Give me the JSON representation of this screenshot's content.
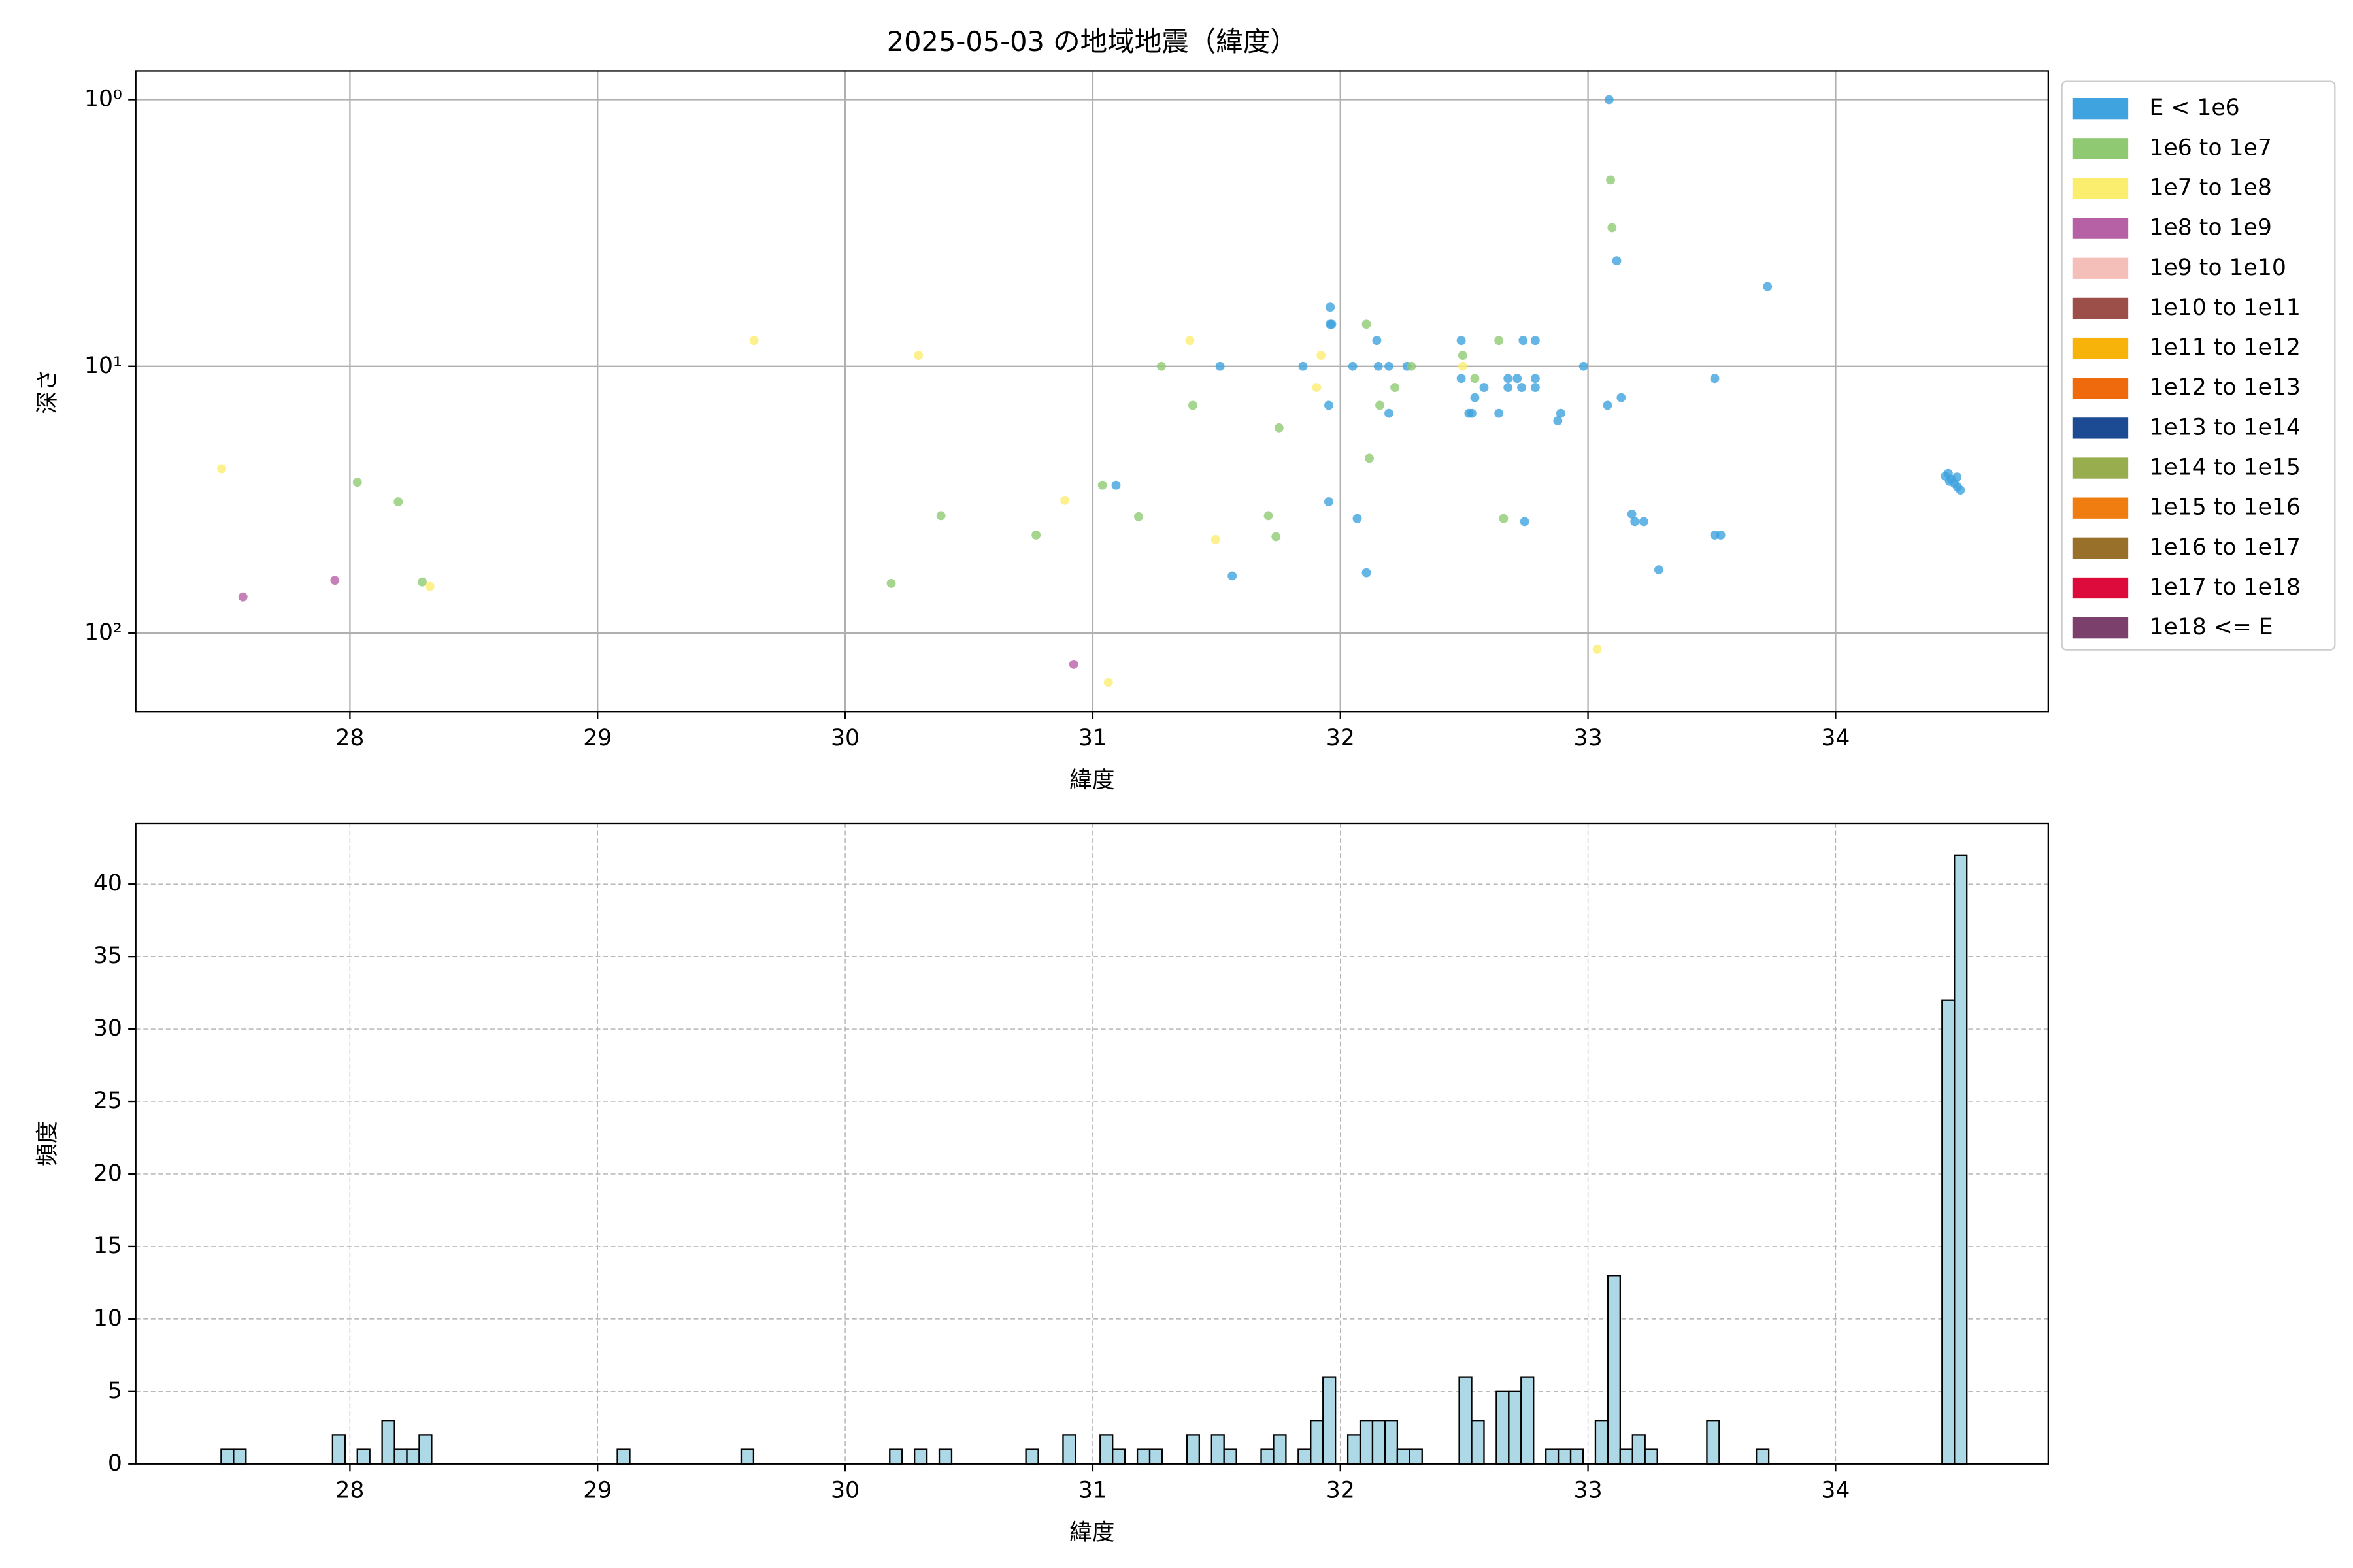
{
  "chart_data": [
    {
      "type": "scatter",
      "title": "2025-05-03 の地域地震（緯度）",
      "x_label": "緯度",
      "y_label": "深さ",
      "xlim": [
        27.135,
        34.859
      ],
      "xticks": [
        28,
        29,
        30,
        31,
        32,
        33,
        34
      ],
      "ylim": [
        197,
        0.78
      ],
      "log_scale": true,
      "yticks": [
        {
          "value": 1,
          "label": "10⁰"
        },
        {
          "value": 10,
          "label": "10¹"
        },
        {
          "value": 100,
          "label": "10²"
        }
      ],
      "grid": true,
      "legend": "outside-right",
      "series": [
        {
          "name": "E < 1e6",
          "color": "#3fa3df",
          "x": [
            33.085,
            33.116,
            33.725,
            31.959,
            31.959,
            31.965,
            32.147,
            32.488,
            32.738,
            32.787,
            31.514,
            31.849,
            32.05,
            32.153,
            32.196,
            32.269,
            32.982,
            32.488,
            33.512,
            32.677,
            32.714,
            32.787,
            32.677,
            32.732,
            32.787,
            32.58,
            32.543,
            33.134,
            31.953,
            32.196,
            32.519,
            32.531,
            32.64,
            32.89,
            32.878,
            33.079,
            31.094,
            31.953,
            33.177,
            33.189,
            33.225,
            32.068,
            32.744,
            33.512,
            33.536,
            33.286,
            31.563,
            32.105,
            34.443,
            34.455,
            34.468,
            34.48,
            34.492,
            34.504,
            34.46,
            34.49
          ],
          "y": [
            1.0,
            4.02,
            5.02,
            6.0,
            6.95,
            6.95,
            8.0,
            8.0,
            8.0,
            8.0,
            10,
            10,
            10,
            10,
            10,
            10,
            10,
            11.1,
            11.1,
            11.1,
            11.1,
            11.1,
            12.0,
            12.0,
            12.0,
            12.0,
            13.1,
            13.1,
            14.0,
            15.0,
            15.0,
            15.0,
            15.0,
            15.0,
            16.0,
            14.0,
            27.9,
            32.2,
            35.8,
            38.2,
            38.2,
            37.2,
            38.2,
            42.9,
            42.9,
            57.9,
            61.0,
            59.4,
            25.8,
            25.2,
            26.5,
            27.5,
            28.3,
            29.1,
            27.0,
            26.0
          ]
        },
        {
          "name": "1e6 to 1e7",
          "color": "#8fca72",
          "x": [
            33.091,
            33.097,
            32.105,
            32.64,
            32.494,
            31.277,
            32.287,
            32.543,
            32.22,
            31.404,
            32.159,
            31.752,
            32.117,
            28.03,
            28.195,
            31.039,
            30.387,
            31.185,
            31.709,
            32.659,
            30.771,
            31.74,
            28.292,
            30.186
          ],
          "y": [
            2.0,
            3.02,
            6.95,
            8.0,
            9.1,
            10,
            10,
            11.1,
            12.0,
            14.0,
            14.0,
            17.0,
            22.1,
            27.2,
            32.2,
            27.9,
            36.3,
            36.6,
            36.3,
            37.2,
            42.9,
            43.5,
            64.3,
            65.1
          ]
        },
        {
          "name": "1e7 to 1e8",
          "color": "#fbee6f",
          "x": [
            31.392,
            29.632,
            30.296,
            31.922,
            32.494,
            31.904,
            27.482,
            30.887,
            31.496,
            28.323,
            33.037,
            31.063
          ],
          "y": [
            8.0,
            8.0,
            9.1,
            9.1,
            10,
            12.0,
            24.2,
            31.8,
            44.6,
            66.8,
            115,
            153
          ]
        },
        {
          "name": "1e8 to 1e9",
          "color": "#b661a6",
          "x": [
            27.568,
            27.939,
            30.923
          ],
          "y": [
            73.2,
            63.4,
            131
          ]
        },
        {
          "name": "1e9 to 1e10",
          "color": "#f4bfb9",
          "x": [],
          "y": []
        },
        {
          "name": "1e10 to 1e11",
          "color": "#9b4f48",
          "x": [],
          "y": []
        },
        {
          "name": "1e11 to 1e12",
          "color": "#f7b30a",
          "x": [],
          "y": []
        },
        {
          "name": "1e12 to 1e13",
          "color": "#ee6a0c",
          "x": [],
          "y": []
        },
        {
          "name": "1e13 to 1e14",
          "color": "#1d4b93",
          "x": [],
          "y": []
        },
        {
          "name": "1e14 to 1e15",
          "color": "#98ad4d",
          "x": [],
          "y": []
        },
        {
          "name": "1e15 to 1e16",
          "color": "#ef7d10",
          "x": [],
          "y": []
        },
        {
          "name": "1e16 to 1e17",
          "color": "#987029",
          "x": [],
          "y": []
        },
        {
          "name": "1e17 to 1e18",
          "color": "#dc0b3b",
          "x": [],
          "y": []
        },
        {
          "name": "1e18 <= E",
          "color": "#7b406b",
          "x": [],
          "y": []
        }
      ]
    },
    {
      "type": "histogram",
      "x_label": "緯度",
      "y_label": "頻度",
      "color": "#add8e6",
      "edge_color": "#000000",
      "xlim": [
        27.135,
        34.859
      ],
      "xticks": [
        28,
        29,
        30,
        31,
        32,
        33,
        34
      ],
      "ylim": [
        0,
        44.2
      ],
      "yticks": [
        0,
        5,
        10,
        15,
        20,
        25,
        30,
        35,
        40
      ],
      "grid": true,
      "grid_style": "dashed",
      "bins": [
        27.48,
        27.53,
        27.58,
        27.63,
        27.68,
        27.73,
        27.78,
        27.83,
        27.88,
        27.93,
        27.98,
        28.03,
        28.08,
        28.13,
        28.18,
        28.23,
        28.28,
        28.33,
        28.38,
        28.43,
        28.48,
        28.53,
        28.58,
        28.63,
        28.68,
        28.73,
        28.78,
        28.83,
        28.88,
        28.93,
        28.98,
        29.03,
        29.08,
        29.13,
        29.18,
        29.23,
        29.28,
        29.33,
        29.38,
        29.43,
        29.48,
        29.53,
        29.58,
        29.63,
        29.68,
        29.73,
        29.78,
        29.83,
        29.88,
        29.93,
        29.98,
        30.03,
        30.08,
        30.13,
        30.18,
        30.23,
        30.28,
        30.33,
        30.38,
        30.43,
        30.48,
        30.53,
        30.58,
        30.63,
        30.68,
        30.73,
        30.78,
        30.83,
        30.88,
        30.93,
        30.98,
        31.03,
        31.08,
        31.13,
        31.18,
        31.23,
        31.28,
        31.33,
        31.38,
        31.43,
        31.48,
        31.53,
        31.58,
        31.63,
        31.68,
        31.73,
        31.78,
        31.83,
        31.88,
        31.93,
        31.98,
        32.03,
        32.08,
        32.13,
        32.18,
        32.23,
        32.28,
        32.33,
        32.38,
        32.43,
        32.48,
        32.53,
        32.58,
        32.63,
        32.68,
        32.73,
        32.78,
        32.83,
        32.88,
        32.93,
        32.98,
        33.03,
        33.08,
        33.13,
        33.18,
        33.23,
        33.28,
        33.33,
        33.38,
        33.43,
        33.48,
        33.53,
        33.58,
        33.63,
        33.68,
        33.73,
        33.78,
        33.83,
        33.88,
        33.93,
        33.98,
        34.03,
        34.08,
        34.13,
        34.18,
        34.23,
        34.28,
        34.33,
        34.38,
        34.43,
        34.48,
        34.53
      ],
      "counts": [
        1,
        1,
        0,
        0,
        0,
        0,
        0,
        0,
        0,
        2,
        0,
        1,
        0,
        3,
        1,
        1,
        2,
        0,
        0,
        0,
        0,
        0,
        0,
        0,
        0,
        0,
        0,
        0,
        0,
        0,
        0,
        0,
        1,
        0,
        0,
        0,
        0,
        0,
        0,
        0,
        0,
        0,
        1,
        0,
        0,
        0,
        0,
        0,
        0,
        0,
        0,
        0,
        0,
        0,
        1,
        0,
        1,
        0,
        1,
        0,
        0,
        0,
        0,
        0,
        0,
        1,
        0,
        0,
        2,
        0,
        0,
        2,
        1,
        0,
        1,
        1,
        0,
        0,
        2,
        0,
        2,
        1,
        0,
        0,
        1,
        2,
        0,
        1,
        3,
        6,
        0,
        2,
        3,
        3,
        3,
        1,
        1,
        0,
        0,
        0,
        6,
        3,
        0,
        5,
        5,
        6,
        0,
        1,
        1,
        1,
        0,
        3,
        13,
        1,
        2,
        1,
        0,
        0,
        0,
        0,
        3,
        0,
        0,
        0,
        1,
        0,
        0,
        0,
        0,
        0,
        0,
        0,
        0,
        0,
        0,
        0,
        0,
        0,
        0,
        32,
        42
      ]
    }
  ]
}
